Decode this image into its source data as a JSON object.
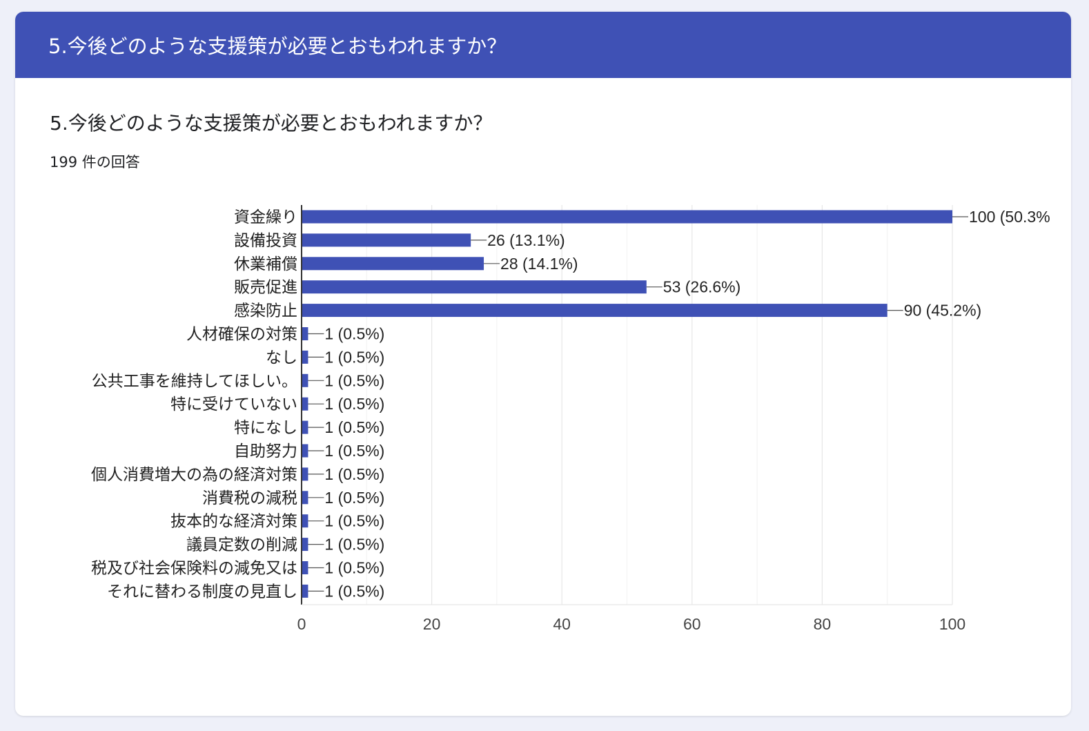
{
  "header": {
    "title": "5.今後どのような支援策が必要とおもわれますか？"
  },
  "question": {
    "title": "5.今後どのような支援策が必要とおもわれますか？",
    "response_count": "199 件の回答"
  },
  "colors": {
    "header_bg": "#3f51b5",
    "bar": "#3f51b5",
    "grid": "#e6e6e6",
    "axis": "#333333"
  },
  "chart_data": {
    "type": "bar",
    "orientation": "horizontal",
    "title": "",
    "xlabel": "",
    "ylabel": "",
    "xlim": [
      0,
      100
    ],
    "x_ticks": [
      0,
      20,
      40,
      60,
      80,
      100
    ],
    "grid": true,
    "legend": "none",
    "categories": [
      "資金繰り",
      "設備投資",
      "休業補償",
      "販売促進",
      "感染防止",
      "人材確保の対策",
      "なし",
      "公共工事を維持してほしい。",
      "特に受けていない",
      "特になし",
      "自助努力",
      "個人消費増大の為の経済対策",
      "消費税の減税",
      "抜本的な経済対策",
      "議員定数の削減",
      "",
      ""
    ],
    "extra_category_label": [
      "税及び社会保険料の減免又は",
      "それに替わる制度の見直し"
    ],
    "values": [
      100,
      26,
      28,
      53,
      90,
      1,
      1,
      1,
      1,
      1,
      1,
      1,
      1,
      1,
      1,
      1,
      1
    ],
    "data_labels": [
      "100 (50.3%",
      "26 (13.1%)",
      "28 (14.1%)",
      "53 (26.6%)",
      "90 (45.2%)",
      "1 (0.5%)",
      "1 (0.5%)",
      "1 (0.5%)",
      "1 (0.5%)",
      "1 (0.5%)",
      "1 (0.5%)",
      "1 (0.5%)",
      "1 (0.5%)",
      "1 (0.5%)",
      "1 (0.5%)",
      "1 (0.5%)",
      "1 (0.5%)"
    ]
  }
}
